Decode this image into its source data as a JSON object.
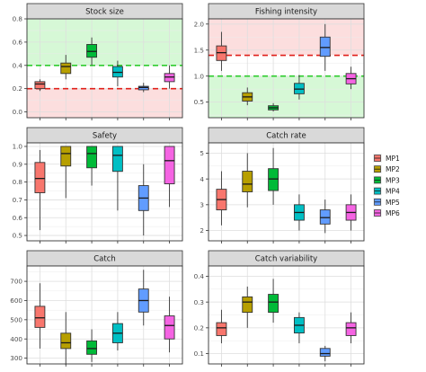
{
  "chart_data": [
    {
      "type": "box",
      "title": "Stock size",
      "ylim": [
        -0.05,
        0.8
      ],
      "yticks": [
        0.0,
        0.2,
        0.4,
        0.6,
        0.8
      ],
      "tick_labels": [
        "0.0",
        "0.2",
        "0.4",
        "0.6",
        "0.8"
      ],
      "bands": [
        {
          "from": 0.4,
          "to": 0.8,
          "color": "#c8f5c8"
        },
        {
          "from": -0.05,
          "to": 0.2,
          "color": "#fbd3d3"
        }
      ],
      "hlines": [
        {
          "value": 0.4,
          "color": "#2ecc2e"
        },
        {
          "value": 0.2,
          "color": "#e0201a"
        }
      ],
      "boxes": [
        {
          "series": "MP1",
          "whislo": 0.18,
          "q1": 0.2,
          "med": 0.24,
          "q3": 0.26,
          "whishi": 0.28
        },
        {
          "series": "MP2",
          "whislo": 0.28,
          "q1": 0.33,
          "med": 0.39,
          "q3": 0.42,
          "whishi": 0.49
        },
        {
          "series": "MP3",
          "whislo": 0.4,
          "q1": 0.47,
          "med": 0.52,
          "q3": 0.58,
          "whishi": 0.64
        },
        {
          "series": "MP4",
          "whislo": 0.22,
          "q1": 0.3,
          "med": 0.34,
          "q3": 0.39,
          "whishi": 0.44
        },
        {
          "series": "MP5",
          "whislo": 0.17,
          "q1": 0.19,
          "med": 0.21,
          "q3": 0.22,
          "whishi": 0.25
        },
        {
          "series": "MP6",
          "whislo": 0.2,
          "q1": 0.26,
          "med": 0.3,
          "q3": 0.33,
          "whishi": 0.4
        }
      ]
    },
    {
      "type": "box",
      "title": "Fishing intensity",
      "ylim": [
        0.2,
        2.1
      ],
      "yticks": [
        0.5,
        1.0,
        1.5,
        2.0
      ],
      "tick_labels": [
        "0.5",
        "1.0",
        "1.5",
        "2.0"
      ],
      "bands": [
        {
          "from": 1.4,
          "to": 2.1,
          "color": "#fbd3d3"
        },
        {
          "from": 0.2,
          "to": 1.0,
          "color": "#c8f5c8"
        }
      ],
      "hlines": [
        {
          "value": 1.4,
          "color": "#e0201a"
        },
        {
          "value": 1.0,
          "color": "#2ecc2e"
        }
      ],
      "boxes": [
        {
          "series": "MP1",
          "whislo": 1.1,
          "q1": 1.3,
          "med": 1.45,
          "q3": 1.58,
          "whishi": 1.85
        },
        {
          "series": "MP2",
          "whislo": 0.44,
          "q1": 0.52,
          "med": 0.6,
          "q3": 0.68,
          "whishi": 0.78
        },
        {
          "series": "MP3",
          "whislo": 0.32,
          "q1": 0.35,
          "med": 0.39,
          "q3": 0.43,
          "whishi": 0.48
        },
        {
          "series": "MP4",
          "whislo": 0.55,
          "q1": 0.66,
          "med": 0.75,
          "q3": 0.86,
          "whishi": 1.02
        },
        {
          "series": "MP5",
          "whislo": 1.1,
          "q1": 1.38,
          "med": 1.55,
          "q3": 1.75,
          "whishi": 2.0
        },
        {
          "series": "MP6",
          "whislo": 0.75,
          "q1": 0.85,
          "med": 0.95,
          "q3": 1.05,
          "whishi": 1.18
        }
      ]
    },
    {
      "type": "box",
      "title": "Safety",
      "ylim": [
        0.47,
        1.02
      ],
      "yticks": [
        0.5,
        0.6,
        0.7,
        0.8,
        0.9,
        1.0
      ],
      "tick_labels": [
        "0.5",
        "0.6",
        "0.7",
        "0.8",
        "0.9",
        "1.0"
      ],
      "bands": [],
      "hlines": [],
      "boxes": [
        {
          "series": "MP1",
          "whislo": 0.53,
          "q1": 0.74,
          "med": 0.82,
          "q3": 0.91,
          "whishi": 0.98
        },
        {
          "series": "MP2",
          "whislo": 0.71,
          "q1": 0.89,
          "med": 0.96,
          "q3": 1.0,
          "whishi": 1.0
        },
        {
          "series": "MP3",
          "whislo": 0.78,
          "q1": 0.88,
          "med": 0.96,
          "q3": 1.0,
          "whishi": 1.0
        },
        {
          "series": "MP4",
          "whislo": 0.64,
          "q1": 0.86,
          "med": 0.95,
          "q3": 1.0,
          "whishi": 1.0
        },
        {
          "series": "MP5",
          "whislo": 0.5,
          "q1": 0.64,
          "med": 0.71,
          "q3": 0.78,
          "whishi": 0.9
        },
        {
          "series": "MP6",
          "whislo": 0.66,
          "q1": 0.79,
          "med": 0.92,
          "q3": 1.0,
          "whishi": 1.0
        }
      ]
    },
    {
      "type": "box",
      "title": "Catch rate",
      "ylim": [
        1.6,
        5.4
      ],
      "yticks": [
        2,
        3,
        4,
        5
      ],
      "tick_labels": [
        "2",
        "3",
        "4",
        "5"
      ],
      "bands": [],
      "hlines": [],
      "boxes": [
        {
          "series": "MP1",
          "whislo": 2.2,
          "q1": 2.8,
          "med": 3.2,
          "q3": 3.6,
          "whishi": 4.3
        },
        {
          "series": "MP2",
          "whislo": 2.9,
          "q1": 3.5,
          "med": 3.8,
          "q3": 4.3,
          "whishi": 5.0
        },
        {
          "series": "MP3",
          "whislo": 3.0,
          "q1": 3.55,
          "med": 4.0,
          "q3": 4.4,
          "whishi": 5.2
        },
        {
          "series": "MP4",
          "whislo": 2.0,
          "q1": 2.4,
          "med": 2.7,
          "q3": 3.0,
          "whishi": 3.4
        },
        {
          "series": "MP5",
          "whislo": 1.9,
          "q1": 2.25,
          "med": 2.5,
          "q3": 2.8,
          "whishi": 3.2
        },
        {
          "series": "MP6",
          "whislo": 2.0,
          "q1": 2.4,
          "med": 2.7,
          "q3": 3.0,
          "whishi": 3.4
        }
      ]
    },
    {
      "type": "box",
      "title": "Catch",
      "ylim": [
        270,
        780
      ],
      "yticks": [
        300,
        400,
        500,
        600,
        700
      ],
      "tick_labels": [
        "300",
        "400",
        "500",
        "600",
        "700"
      ],
      "bands": [],
      "hlines": [],
      "boxes": [
        {
          "series": "MP1",
          "whislo": 350,
          "q1": 460,
          "med": 510,
          "q3": 570,
          "whishi": 690
        },
        {
          "series": "MP2",
          "whislo": 265,
          "q1": 350,
          "med": 380,
          "q3": 430,
          "whishi": 540
        },
        {
          "series": "MP3",
          "whislo": 280,
          "q1": 320,
          "med": 350,
          "q3": 390,
          "whishi": 450
        },
        {
          "series": "MP4",
          "whislo": 340,
          "q1": 380,
          "med": 430,
          "q3": 480,
          "whishi": 540
        },
        {
          "series": "MP5",
          "whislo": 470,
          "q1": 540,
          "med": 600,
          "q3": 660,
          "whishi": 760
        },
        {
          "series": "MP6",
          "whislo": 330,
          "q1": 400,
          "med": 470,
          "q3": 520,
          "whishi": 620
        }
      ]
    },
    {
      "type": "box",
      "title": "Catch variability",
      "ylim": [
        0.06,
        0.44
      ],
      "yticks": [
        0.1,
        0.2,
        0.3,
        0.4
      ],
      "tick_labels": [
        "0.1",
        "0.2",
        "0.3",
        "0.4"
      ],
      "bands": [],
      "hlines": [],
      "boxes": [
        {
          "series": "MP1",
          "whislo": 0.14,
          "q1": 0.17,
          "med": 0.2,
          "q3": 0.22,
          "whishi": 0.27
        },
        {
          "series": "MP2",
          "whislo": 0.2,
          "q1": 0.26,
          "med": 0.3,
          "q3": 0.32,
          "whishi": 0.36
        },
        {
          "series": "MP3",
          "whislo": 0.22,
          "q1": 0.26,
          "med": 0.3,
          "q3": 0.33,
          "whishi": 0.39
        },
        {
          "series": "MP4",
          "whislo": 0.14,
          "q1": 0.18,
          "med": 0.21,
          "q3": 0.24,
          "whishi": 0.26
        },
        {
          "series": "MP5",
          "whislo": 0.07,
          "q1": 0.09,
          "med": 0.1,
          "q3": 0.12,
          "whishi": 0.13
        },
        {
          "series": "MP6",
          "whislo": 0.14,
          "q1": 0.17,
          "med": 0.2,
          "q3": 0.22,
          "whishi": 0.26
        }
      ]
    }
  ],
  "legend": {
    "position": "right",
    "entries": [
      {
        "label": "MP1",
        "color": "#F8766D"
      },
      {
        "label": "MP2",
        "color": "#B79F00"
      },
      {
        "label": "MP3",
        "color": "#00BA38"
      },
      {
        "label": "MP4",
        "color": "#00BFC4"
      },
      {
        "label": "MP5",
        "color": "#619CFF"
      },
      {
        "label": "MP6",
        "color": "#F564E3"
      }
    ]
  }
}
